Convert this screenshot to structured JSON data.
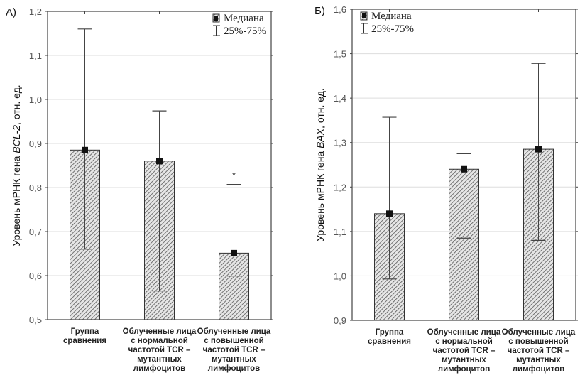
{
  "chart_data": [
    {
      "type": "bar",
      "panel_label": "А)",
      "title": "",
      "ylabel_parts": [
        "Уровень мРНК гена ",
        "BCL-2",
        ", отн. ед."
      ],
      "xlabel": "",
      "ylim": [
        0.5,
        1.2
      ],
      "yticks": [
        "0,5",
        "0,6",
        "0,7",
        "0,8",
        "0,9",
        "1,0",
        "1,1",
        "1,2"
      ],
      "ytick_values": [
        0.5,
        0.6,
        0.7,
        0.8,
        0.9,
        1.0,
        1.1,
        1.2
      ],
      "grid": true,
      "categories": [
        [
          "Группа",
          "сравнения"
        ],
        [
          "Облученные лица",
          "с нормальной",
          "частотой TCR –",
          "мутантных",
          "лимфоцитов"
        ],
        [
          "Облученные лица",
          "с повышенной",
          "частотой TCR –",
          "мутантных",
          "лимфоцитов"
        ]
      ],
      "series": [
        {
          "name": "Медиана",
          "values": [
            0.885,
            0.86,
            0.651
          ]
        },
        {
          "name": "25%",
          "values": [
            0.66,
            0.565,
            0.599
          ]
        },
        {
          "name": "75%",
          "values": [
            1.16,
            0.974,
            0.807
          ]
        }
      ],
      "annotations": [
        {
          "category_index": 2,
          "text": "*"
        }
      ],
      "legend": {
        "position": "top-right",
        "entries": [
          "Медиана",
          "25%-75%"
        ]
      }
    },
    {
      "type": "bar",
      "panel_label": "Б)",
      "title": "",
      "ylabel_parts": [
        "Уровень мРНК гена ",
        "BAX",
        ", отн. ед."
      ],
      "xlabel": "",
      "ylim": [
        0.9,
        1.6
      ],
      "yticks": [
        "0,9",
        "1,0",
        "1,1",
        "1,2",
        "1,3",
        "1,4",
        "1,5",
        "1,6"
      ],
      "ytick_values": [
        0.9,
        1.0,
        1.1,
        1.2,
        1.3,
        1.4,
        1.5,
        1.6
      ],
      "grid": true,
      "categories": [
        [
          "Группа",
          "сравнения"
        ],
        [
          "Облученные лица",
          "с нормальной",
          "частотой TCR –",
          "мутантных",
          "лимфоцитов"
        ],
        [
          "Облученные лица",
          "с повышенной",
          "частотой TCR –",
          "мутантных",
          "лимфоцитов"
        ]
      ],
      "series": [
        {
          "name": "Медиана",
          "values": [
            1.14,
            1.24,
            1.285
          ]
        },
        {
          "name": "25%",
          "values": [
            0.993,
            1.085,
            1.08
          ]
        },
        {
          "name": "75%",
          "values": [
            1.357,
            1.275,
            1.478
          ]
        }
      ],
      "annotations": [],
      "legend": {
        "position": "top-left",
        "entries": [
          "Медиана",
          "25%-75%"
        ]
      }
    }
  ]
}
